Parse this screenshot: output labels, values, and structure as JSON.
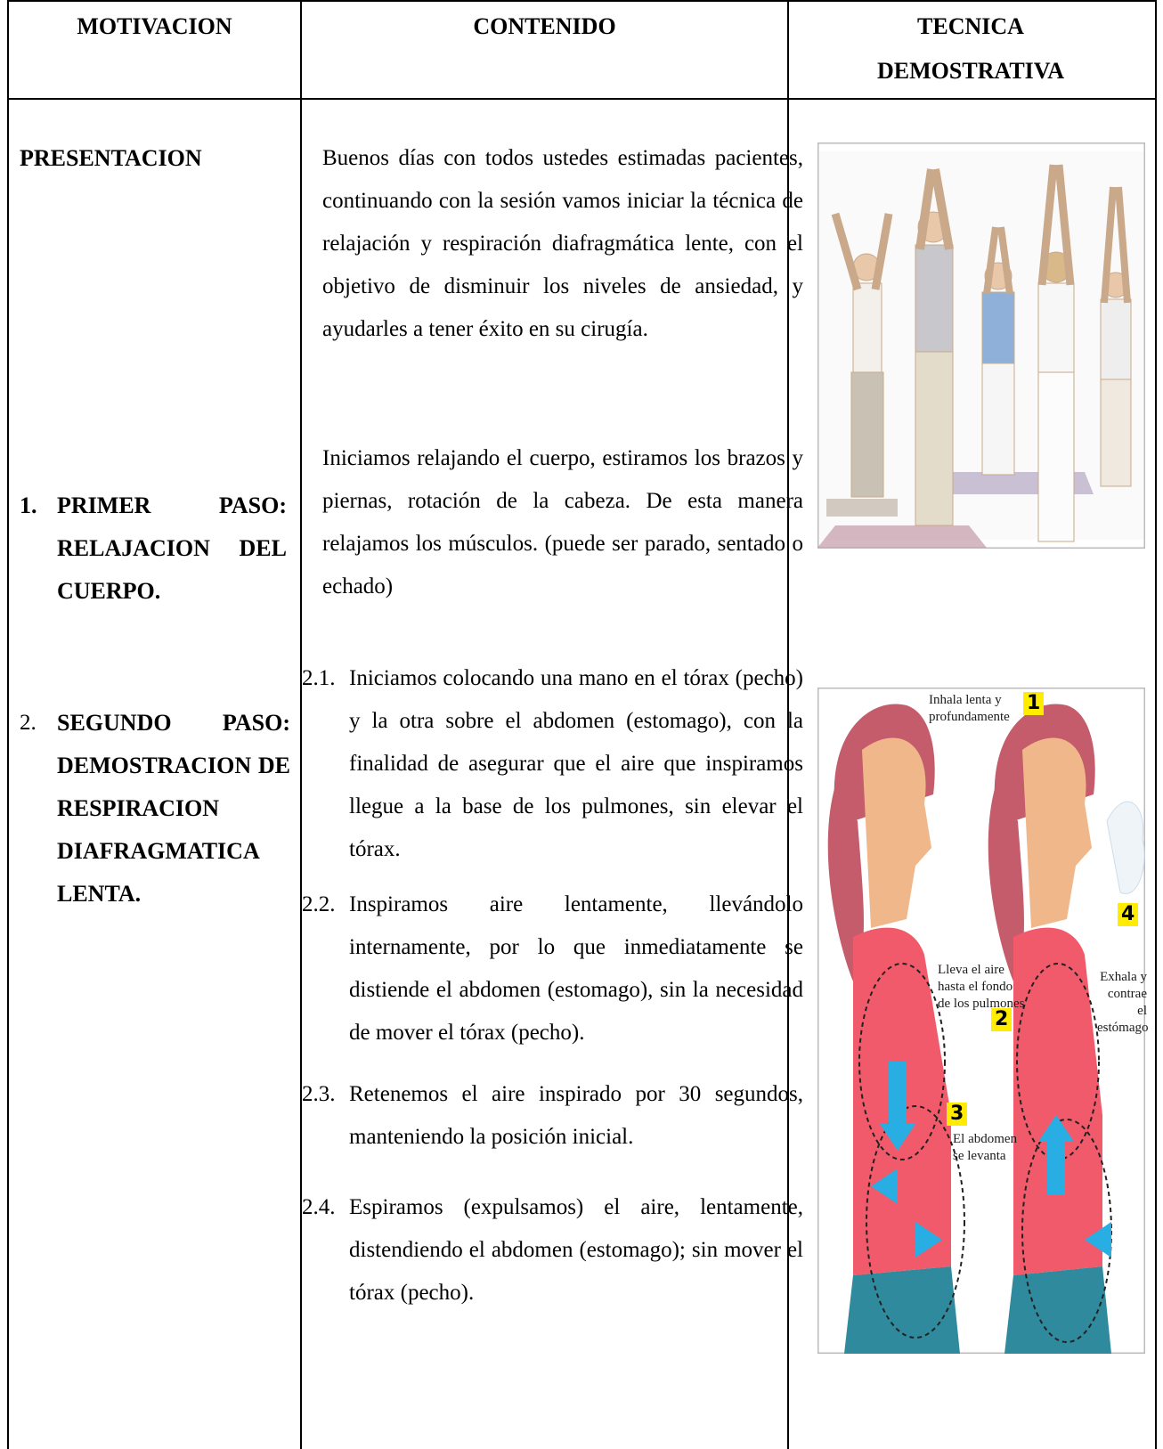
{
  "header": [
    "MOTIVACION",
    "CONTENIDO",
    "TECNICA DEMOSTRATIVA"
  ],
  "motivation": {
    "presentation": "PRESENTACION",
    "steps": [
      {
        "number": "1.",
        "text": "PRIMER PASO: RELAJACION DEL CUERPO."
      },
      {
        "number": "2.",
        "text": "SEGUNDO PASO: DEMOSTRACION DE RESPIRACION DIAFRAGMATICA LENTA."
      }
    ]
  },
  "content": {
    "paragraphs": [
      "Buenos días con todos ustedes estimadas pacientes, continuando con la sesión vamos iniciar la técnica de relajación y respiración diafragmática lente, con el objetivo de disminuir los niveles de ansiedad, y ayudarles a tener éxito en su cirugía.",
      "Iniciamos relajando el cuerpo, estiramos los brazos y piernas, rotación de la cabeza. De esta manera relajamos los músculos. (puede ser parado, sentado o echado)"
    ],
    "list": [
      {
        "number": "2.1.",
        "text": "Iniciamos colocando una mano en el tórax (pecho) y la otra sobre el abdomen (estomago), con la finalidad de asegurar que el aire que inspiramos llegue a la base de los pulmones, sin elevar el tórax."
      },
      {
        "number": "2.2.",
        "text": "Inspiramos aire lentamente, llevándolo internamente, por lo que inmediatamente se distiende el abdomen (estomago), sin la necesidad de mover el tórax (pecho)."
      },
      {
        "number": "2.3.",
        "text": "Retenemos el aire inspirado por 30 segundos, manteniendo la posición inicial."
      },
      {
        "number": "2.4.",
        "text": "Espiramos (expulsamos) el aire, lentamente, distendiendo el abdomen (estomago); sin mover el tórax (pecho)."
      }
    ]
  },
  "figure": {
    "labels": [
      {
        "number": "1",
        "text": "Inhala lenta y profundamente"
      },
      {
        "number": "2",
        "text": "Lleva el aire hasta el fondo de los pulmones"
      },
      {
        "number": "3",
        "text": "El abdomen se levanta"
      },
      {
        "number": "4",
        "text": "Exhala y contrae el estómago"
      }
    ]
  }
}
